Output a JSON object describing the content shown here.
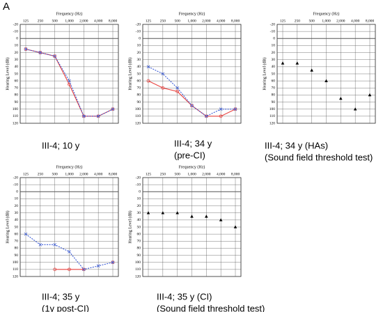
{
  "panel_label": "A",
  "chart_data": [
    {
      "type": "line",
      "title_lines": [
        "III-4; 10 y"
      ],
      "xlabel": "Frequency (Hz)",
      "ylabel": "Hearing Level (dB)",
      "categories": [
        "125",
        "250",
        "500",
        "1,000",
        "2,000",
        "4,000",
        "8,000"
      ],
      "ylim": [
        -20,
        120
      ],
      "y_inverted": true,
      "yticks": [
        -20,
        -10,
        0,
        10,
        20,
        30,
        40,
        50,
        60,
        70,
        80,
        90,
        100,
        110,
        120
      ],
      "grid": true,
      "series": [
        {
          "color": "#e8423f",
          "marker": "o",
          "dashed": false,
          "values": [
            15,
            20,
            25,
            65,
            110,
            110,
            100
          ]
        },
        {
          "color": "#3b5bd6",
          "marker": "x",
          "dashed": true,
          "values": [
            15,
            20,
            25,
            60,
            110,
            110,
            100
          ]
        }
      ]
    },
    {
      "type": "line",
      "title_lines": [
        "III-4; 34 y",
        "(pre-CI)"
      ],
      "xlabel": "Frequency (Hz)",
      "ylabel": "Hearing Level (dB)",
      "categories": [
        "125",
        "250",
        "500",
        "1,000",
        "2,000",
        "4,000",
        "8,000"
      ],
      "ylim": [
        -20,
        120
      ],
      "y_inverted": true,
      "yticks": [
        -20,
        -10,
        0,
        10,
        20,
        30,
        40,
        50,
        60,
        70,
        80,
        90,
        100,
        110,
        120
      ],
      "grid": true,
      "series": [
        {
          "color": "#e8423f",
          "marker": "o",
          "dashed": false,
          "values": [
            60,
            70,
            75,
            95,
            110,
            110,
            100
          ]
        },
        {
          "color": "#3b5bd6",
          "marker": "x",
          "dashed": true,
          "values": [
            40,
            50,
            70,
            95,
            110,
            100,
            100
          ]
        }
      ]
    },
    {
      "type": "scatter",
      "title_lines": [
        "III-4; 34 y (HAs)",
        "(Sound field threshold test)"
      ],
      "xlabel": "Frequency (Hz)",
      "ylabel": "Hearing Level (dB)",
      "categories": [
        "125",
        "250",
        "500",
        "1,000",
        "2,000",
        "4,000",
        "8,000"
      ],
      "ylim": [
        -20,
        120
      ],
      "y_inverted": true,
      "yticks": [
        -20,
        -10,
        0,
        10,
        20,
        30,
        40,
        50,
        60,
        70,
        80,
        90,
        100,
        110,
        120
      ],
      "grid": true,
      "series": [
        {
          "color": "#000000",
          "marker": "triangle",
          "dashed": false,
          "values": [
            35,
            35,
            45,
            60,
            85,
            100,
            80
          ]
        }
      ]
    },
    {
      "type": "line",
      "title_lines": [
        "III-4; 35 y",
        "(1y post-CI)"
      ],
      "xlabel": "Frequency (Hz)",
      "ylabel": "Hearing Level (dB)",
      "categories": [
        "125",
        "250",
        "500",
        "1,000",
        "2,000",
        "4,000",
        "8,000"
      ],
      "ylim": [
        -20,
        120
      ],
      "y_inverted": true,
      "yticks": [
        -20,
        -10,
        0,
        10,
        20,
        30,
        40,
        50,
        60,
        70,
        80,
        90,
        100,
        110,
        120
      ],
      "grid": true,
      "series": [
        {
          "color": "#e8423f",
          "marker": "o",
          "dashed": false,
          "values": [
            null,
            null,
            110,
            110,
            110,
            null,
            100
          ]
        },
        {
          "color": "#3b5bd6",
          "marker": "x",
          "dashed": true,
          "values": [
            60,
            75,
            75,
            85,
            110,
            105,
            100
          ]
        }
      ]
    },
    {
      "type": "scatter",
      "title_lines": [
        "III-4; 35 y (CI)",
        "(Sound field threshold test)"
      ],
      "xlabel": "Frequency (Hz)",
      "ylabel": "Hearing Level (dB)",
      "categories": [
        "125",
        "250",
        "500",
        "1,000",
        "2,000",
        "4,000",
        "8,000"
      ],
      "ylim": [
        -20,
        120
      ],
      "y_inverted": true,
      "yticks": [
        -20,
        -10,
        0,
        10,
        20,
        30,
        40,
        50,
        60,
        70,
        80,
        90,
        100,
        110,
        120
      ],
      "grid": true,
      "series": [
        {
          "color": "#000000",
          "marker": "triangle",
          "dashed": false,
          "values": [
            30,
            30,
            30,
            35,
            35,
            40,
            50
          ]
        }
      ]
    }
  ]
}
